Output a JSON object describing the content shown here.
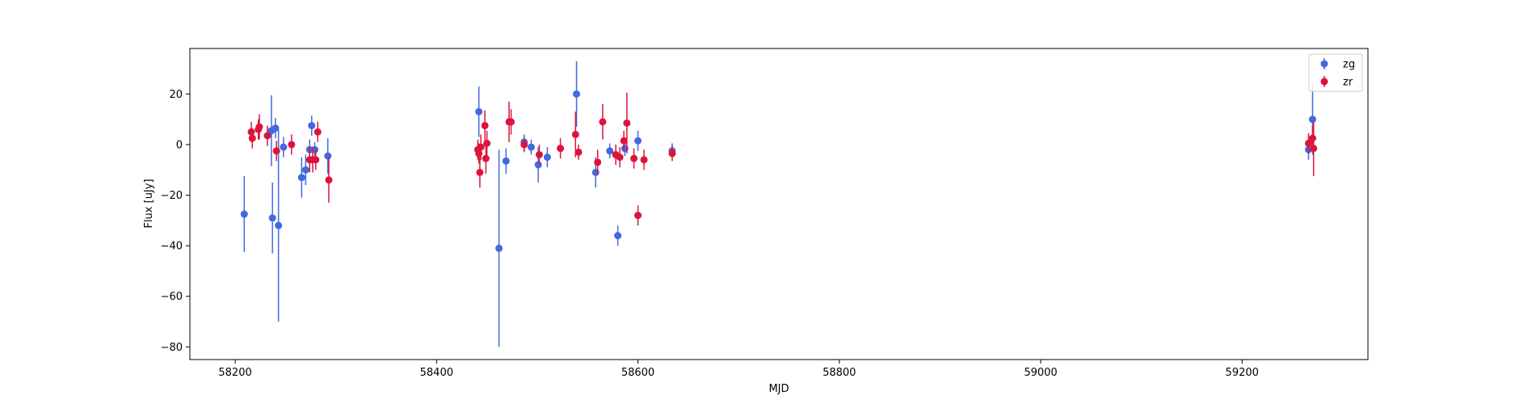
{
  "chart_data": {
    "type": "scatter",
    "title": "",
    "xlabel": "MJD",
    "ylabel": "Flux [uJy]",
    "xlim": [
      58155,
      59325
    ],
    "ylim": [
      -85,
      38
    ],
    "x_ticks": [
      58200,
      58400,
      58600,
      58800,
      59000,
      59200
    ],
    "y_ticks": [
      -80,
      -60,
      -40,
      -20,
      0,
      20
    ],
    "grid": false,
    "legend_position": "top-right",
    "series": [
      {
        "name": "zg",
        "color": "#4169e1",
        "points": [
          {
            "x": 58209,
            "y": -27.5,
            "err": 15
          },
          {
            "x": 58236,
            "y": 5.5,
            "err": 14
          },
          {
            "x": 58237,
            "y": -29,
            "err": 14
          },
          {
            "x": 58240,
            "y": 6.5,
            "err": 4
          },
          {
            "x": 58243,
            "y": -32,
            "err": 38
          },
          {
            "x": 58248,
            "y": -1,
            "err": 4
          },
          {
            "x": 58266,
            "y": -13,
            "err": 8
          },
          {
            "x": 58270,
            "y": -10,
            "err": 6
          },
          {
            "x": 58274,
            "y": -2,
            "err": 4
          },
          {
            "x": 58276,
            "y": 7.5,
            "err": 4
          },
          {
            "x": 58279,
            "y": -2,
            "err": 3
          },
          {
            "x": 58292,
            "y": -4.5,
            "err": 7
          },
          {
            "x": 58442,
            "y": 13,
            "err": 10
          },
          {
            "x": 58462,
            "y": -41,
            "err": 39
          },
          {
            "x": 58469,
            "y": -6.5,
            "err": 5
          },
          {
            "x": 58487,
            "y": 1,
            "err": 3
          },
          {
            "x": 58494,
            "y": -1,
            "err": 3
          },
          {
            "x": 58501,
            "y": -8,
            "err": 7
          },
          {
            "x": 58510,
            "y": -5,
            "err": 4
          },
          {
            "x": 58539,
            "y": 20,
            "err": 13
          },
          {
            "x": 58558,
            "y": -11,
            "err": 6
          },
          {
            "x": 58572,
            "y": -2.5,
            "err": 3
          },
          {
            "x": 58580,
            "y": -36,
            "err": 4
          },
          {
            "x": 58587,
            "y": -1.5,
            "err": 3
          },
          {
            "x": 58600,
            "y": 1.5,
            "err": 4
          },
          {
            "x": 58634,
            "y": -2.5,
            "err": 3
          },
          {
            "x": 59266,
            "y": -2,
            "err": 4
          },
          {
            "x": 59270,
            "y": 10,
            "err": 14
          }
        ]
      },
      {
        "name": "zr",
        "color": "#dc143c",
        "points": [
          {
            "x": 58216,
            "y": 5,
            "err": 4
          },
          {
            "x": 58217,
            "y": 2.5,
            "err": 4
          },
          {
            "x": 58223,
            "y": 6,
            "err": 4
          },
          {
            "x": 58224,
            "y": 7,
            "err": 5
          },
          {
            "x": 58232,
            "y": 3.5,
            "err": 4
          },
          {
            "x": 58241,
            "y": -2.5,
            "err": 4
          },
          {
            "x": 58256,
            "y": 0,
            "err": 4
          },
          {
            "x": 58274,
            "y": -6,
            "err": 5
          },
          {
            "x": 58277,
            "y": -6,
            "err": 5
          },
          {
            "x": 58280,
            "y": -6,
            "err": 4
          },
          {
            "x": 58282,
            "y": 5,
            "err": 4
          },
          {
            "x": 58293,
            "y": -14,
            "err": 9
          },
          {
            "x": 58441,
            "y": -2,
            "err": 4
          },
          {
            "x": 58442,
            "y": -3.5,
            "err": 4
          },
          {
            "x": 58443,
            "y": -11,
            "err": 6
          },
          {
            "x": 58444,
            "y": -1,
            "err": 5
          },
          {
            "x": 58448,
            "y": 7.5,
            "err": 6
          },
          {
            "x": 58449,
            "y": -5.5,
            "err": 6
          },
          {
            "x": 58450,
            "y": 0.5,
            "err": 5
          },
          {
            "x": 58472,
            "y": 9,
            "err": 8
          },
          {
            "x": 58474,
            "y": 9,
            "err": 5
          },
          {
            "x": 58487,
            "y": 0,
            "err": 3
          },
          {
            "x": 58502,
            "y": -4,
            "err": 4
          },
          {
            "x": 58523,
            "y": -1.5,
            "err": 4
          },
          {
            "x": 58538,
            "y": 4,
            "err": 9
          },
          {
            "x": 58541,
            "y": -3,
            "err": 3
          },
          {
            "x": 58560,
            "y": -7,
            "err": 5
          },
          {
            "x": 58565,
            "y": 9,
            "err": 7
          },
          {
            "x": 58578,
            "y": -4,
            "err": 4
          },
          {
            "x": 58582,
            "y": -5,
            "err": 4
          },
          {
            "x": 58586,
            "y": 1.5,
            "err": 4
          },
          {
            "x": 58589,
            "y": 8.5,
            "err": 12
          },
          {
            "x": 58596,
            "y": -5.5,
            "err": 4
          },
          {
            "x": 58600,
            "y": -28,
            "err": 4
          },
          {
            "x": 58606,
            "y": -6,
            "err": 4
          },
          {
            "x": 58634,
            "y": -3.5,
            "err": 3
          },
          {
            "x": 59266,
            "y": 0.5,
            "err": 4
          },
          {
            "x": 59270,
            "y": 2.5,
            "err": 5
          },
          {
            "x": 59271,
            "y": -1.5,
            "err": 11
          }
        ]
      }
    ]
  }
}
